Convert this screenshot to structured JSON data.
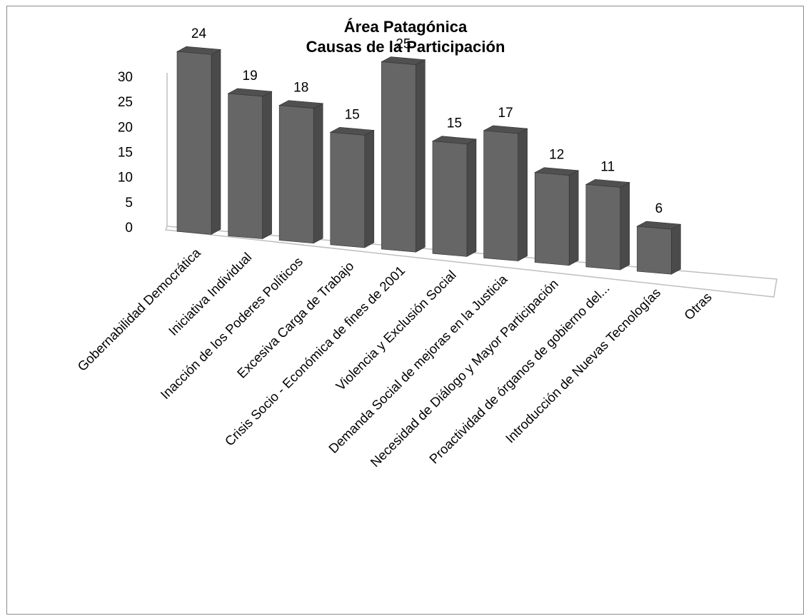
{
  "chart_data": {
    "type": "bar",
    "title": "Área Patagónica",
    "subtitle": "Causas de la Participación",
    "categories": [
      "Gobernabilidad Democrática",
      "Iniciativa Individual",
      "Inacción de los Poderes Políticos",
      "Excesiva Carga de Trabajo",
      "Crisis Socio - Económica de fines de 2001",
      "Violencia y Exclusión Social",
      "Demanda Social de mejoras en la Justicia",
      "Necesidad de Diálogo y Mayor Participación",
      "Proactividad de órganos de gobierno del...",
      "Introducción de Nuevas Tecnologías",
      "Otras"
    ],
    "values": [
      24,
      19,
      18,
      15,
      25,
      15,
      17,
      12,
      11,
      6,
      null
    ],
    "data_labels": [
      "24",
      "19",
      "18",
      "15",
      "25",
      "15",
      "17",
      "12",
      "11",
      "6",
      ""
    ],
    "y_ticks": [
      "0",
      "5",
      "10",
      "15",
      "20",
      "25",
      "30"
    ],
    "ylim": [
      0,
      30
    ],
    "xlabel": "",
    "ylabel": "",
    "grid": false,
    "legend": "none",
    "style": "3d-column",
    "colors": {
      "bar_front": "#666666",
      "bar_side": "#4a4a4a",
      "bar_top": "#505050",
      "axis": "#bfbfbf",
      "frame": "#8c8c8c"
    }
  }
}
